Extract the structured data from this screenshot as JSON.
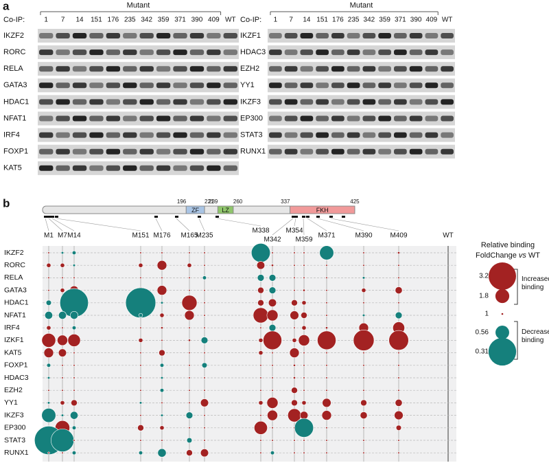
{
  "panel_a": {
    "label": "a",
    "left": {
      "header": "Mutant",
      "coip": "Co-IP:",
      "lanes": [
        "1",
        "7",
        "14",
        "151",
        "176",
        "235",
        "342",
        "359",
        "371",
        "390",
        "409",
        "WT"
      ],
      "proteins": [
        "IKZF2",
        "RORC",
        "RELA",
        "GATA3",
        "HDAC1",
        "NFAT1",
        "IRF4",
        "FOXP1",
        "KAT5"
      ]
    },
    "right": {
      "header": "Mutant",
      "coip": "Co-IP:",
      "lanes": [
        "1",
        "7",
        "14",
        "151",
        "176",
        "235",
        "342",
        "359",
        "371",
        "390",
        "409",
        "WT"
      ],
      "proteins": [
        "IKZF1",
        "HDAC3",
        "EZH2",
        "YY1",
        "IKZF3",
        "EP300",
        "STAT3",
        "RUNX1"
      ]
    }
  },
  "panel_b": {
    "label": "b",
    "protein_length": 425,
    "domains": [
      {
        "start": 196,
        "end": 221,
        "name": "ZF",
        "color": "#a9c4e4"
      },
      {
        "start": 239,
        "end": 260,
        "name": "LZ",
        "color": "#8fc56b"
      },
      {
        "start": 337,
        "end": 425,
        "name": "FKH",
        "color": "#f19a9a"
      }
    ],
    "columns": [
      "M1",
      "M7",
      "M14",
      "M151",
      "M176",
      "M165",
      "M235",
      "M338",
      "M342",
      "M354",
      "M359",
      "M371",
      "M390",
      "M409",
      "WT"
    ],
    "rows": [
      "IKZF2",
      "RORC",
      "RELA",
      "GATA3",
      "HDAC1",
      "NFAT1",
      "IRF4",
      "IZKF1",
      "KAT5",
      "FOXP1",
      "HDAC3",
      "EZH2",
      "YY1",
      "IKZF3",
      "EP300",
      "STAT3",
      "RUNX1"
    ],
    "fold_change": [
      [
        1,
        0.9,
        0.85,
        1,
        1,
        1,
        1,
        0.45,
        1,
        1,
        1,
        0.55,
        1,
        1.1,
        null
      ],
      [
        1.2,
        1.2,
        0.9,
        1.2,
        1.5,
        1.2,
        1,
        1.4,
        1.1,
        1,
        1,
        1,
        1,
        1,
        null
      ],
      [
        1,
        1,
        1,
        1,
        1,
        1,
        0.85,
        0.75,
        0.75,
        1,
        1,
        1,
        0.9,
        1,
        null
      ],
      [
        1,
        1.2,
        1.45,
        1.3,
        1.5,
        1,
        1,
        1.3,
        0.75,
        1,
        1.1,
        1,
        1.2,
        1.35,
        null
      ],
      [
        0.8,
        1,
        0.3,
        0.28,
        0.9,
        1.9,
        1,
        1.3,
        1.4,
        1.3,
        1.2,
        1,
        1,
        1,
        null
      ],
      [
        0.72,
        0.72,
        0.72,
        0.85,
        1.2,
        1.5,
        1,
        1.9,
        1.6,
        1.45,
        1.3,
        1,
        0.9,
        0.75,
        null
      ],
      [
        1.2,
        1,
        0.85,
        1,
        1.1,
        1,
        1,
        1,
        0.75,
        1,
        1.2,
        1.1,
        1.5,
        1.65,
        null
      ],
      [
        1.8,
        1.55,
        1.7,
        1.2,
        1,
        1.1,
        0.75,
        1.2,
        2.2,
        1.2,
        1.6,
        2.2,
        2.4,
        2.3,
        null
      ],
      [
        1.5,
        1.4,
        1,
        1,
        1.3,
        1,
        1,
        1.2,
        1,
        1.5,
        1,
        1,
        1,
        1,
        null
      ],
      [
        0.85,
        1,
        1,
        1,
        0.85,
        1,
        0.8,
        1,
        1,
        1.1,
        1,
        1,
        1,
        1,
        null
      ],
      [
        0.9,
        1,
        1,
        1,
        0.9,
        1,
        1,
        1,
        1,
        1.1,
        1,
        1,
        1,
        1,
        null
      ],
      [
        1,
        1,
        1,
        1,
        0.85,
        1,
        1,
        1,
        1,
        1.3,
        1,
        1,
        1,
        1,
        null
      ],
      [
        0.9,
        1.2,
        1.3,
        0.9,
        1,
        1,
        1.4,
        1.2,
        1.6,
        1.3,
        1.2,
        1.45,
        1.3,
        1.35,
        null
      ],
      [
        0.55,
        0.9,
        0.72,
        1,
        0.9,
        0.75,
        1,
        1,
        1.55,
        1.75,
        1.4,
        1.5,
        1.35,
        1.45,
        null
      ],
      [
        1.2,
        1.85,
        0.85,
        1.3,
        1.2,
        1,
        1,
        1.75,
        1,
        1,
        0.45,
        1,
        1,
        1.25,
        null
      ],
      [
        0.3,
        0.38,
        1,
        1,
        1,
        0.8,
        1,
        1,
        1,
        1,
        1,
        1,
        1,
        1,
        null
      ],
      [
        1,
        1,
        0.85,
        0.85,
        0.7,
        1.3,
        1.4,
        1,
        0.85,
        1,
        1,
        1,
        1,
        1,
        null
      ]
    ],
    "increase_color": "#a32222",
    "decrease_color": "#15807c",
    "legend": {
      "title": "Relative binding",
      "subtitle": "FoldChange",
      "subtitle_italic": "vs",
      "subtitle_end": "WT",
      "ticks": [
        3.2,
        1.8,
        1,
        0.56,
        0.31
      ],
      "increased": "Increased binding",
      "decreased": "Decreased binding"
    }
  }
}
